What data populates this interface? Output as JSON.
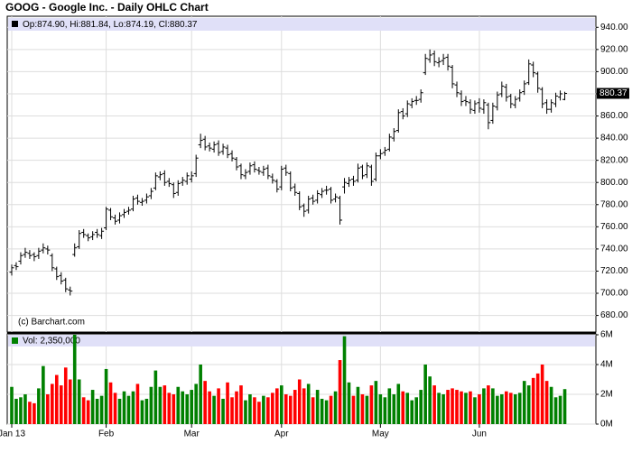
{
  "chart_data": {
    "type": "ohlc",
    "title": "GOOG - Google Inc. - Daily OHLC Chart",
    "info": "Op:874.90, Hi:881.84, Lo:874.19, Cl:880.37",
    "copyright": "(c) Barchart.com",
    "color": "#000000",
    "up_color": "#008000",
    "down_color": "#ff0000",
    "strip_color": "#e0e0f8",
    "grid": true,
    "categories": [
      "Jan 13",
      null,
      null,
      null,
      null,
      null,
      null,
      null,
      null,
      null,
      null,
      null,
      null,
      null,
      null,
      null,
      null,
      null,
      null,
      null,
      null,
      "Feb",
      null,
      null,
      null,
      null,
      null,
      null,
      null,
      null,
      null,
      null,
      null,
      null,
      null,
      null,
      null,
      null,
      null,
      null,
      "Mar",
      null,
      null,
      null,
      null,
      null,
      null,
      null,
      null,
      null,
      null,
      null,
      null,
      null,
      null,
      null,
      null,
      null,
      null,
      null,
      "Apr",
      null,
      null,
      null,
      null,
      null,
      null,
      null,
      null,
      null,
      null,
      null,
      null,
      null,
      null,
      null,
      null,
      null,
      null,
      null,
      null,
      null,
      "May",
      null,
      null,
      null,
      null,
      null,
      null,
      null,
      null,
      null,
      null,
      null,
      null,
      null,
      null,
      null,
      null,
      null,
      null,
      null,
      null,
      null,
      "Jun",
      null,
      null,
      null,
      null,
      null,
      null,
      null,
      null,
      null,
      null,
      null,
      null,
      null,
      null,
      null,
      null,
      null,
      null,
      null
    ],
    "open": [
      719,
      725,
      729,
      735,
      736,
      735,
      734,
      739,
      740,
      734,
      722,
      716,
      712,
      703,
      735,
      742,
      755,
      752,
      751,
      755,
      752,
      759,
      775,
      768,
      766,
      771,
      774,
      776,
      786,
      782,
      784,
      788,
      795,
      805,
      808,
      801,
      798,
      791,
      800,
      801,
      803,
      808,
      834,
      839,
      833,
      830,
      835,
      828,
      831,
      826,
      821,
      815,
      806,
      810,
      816,
      811,
      809,
      813,
      805,
      801,
      796,
      813,
      808,
      796,
      790,
      779,
      775,
      786,
      784,
      789,
      793,
      794,
      785,
      786,
      796,
      799,
      803,
      802,
      814,
      807,
      814,
      803,
      824,
      827,
      830,
      840,
      847,
      864,
      862,
      870,
      874,
      875,
      899,
      911,
      916,
      908,
      910,
      913,
      904,
      888,
      880,
      874,
      872,
      865,
      872,
      866,
      870,
      856,
      868,
      880,
      886,
      878,
      870,
      876,
      882,
      890,
      906,
      898,
      884,
      872,
      866,
      871,
      877,
      874.9
    ],
    "high": [
      726,
      728,
      737,
      741,
      739,
      737,
      741,
      745,
      743,
      736,
      724,
      719,
      714,
      706,
      745,
      757,
      758,
      754,
      756,
      758,
      759,
      778,
      777,
      771,
      773,
      776,
      778,
      788,
      789,
      786,
      790,
      795,
      809,
      810,
      811,
      804,
      800,
      802,
      805,
      809,
      810,
      825,
      844,
      842,
      836,
      837,
      838,
      835,
      834,
      829,
      823,
      817,
      812,
      818,
      819,
      814,
      815,
      816,
      808,
      803,
      815,
      816,
      810,
      799,
      792,
      781,
      788,
      789,
      793,
      795,
      797,
      796,
      790,
      788,
      804,
      805,
      806,
      817,
      816,
      818,
      816,
      827,
      830,
      832,
      844,
      849,
      866,
      867,
      874,
      876,
      878,
      884,
      916,
      920,
      919,
      913,
      916,
      916,
      906,
      891,
      883,
      878,
      875,
      874,
      876,
      875,
      872,
      872,
      882,
      891,
      889,
      880,
      878,
      884,
      892,
      911,
      909,
      900,
      886,
      875,
      875,
      881,
      883,
      881.84
    ],
    "low": [
      716,
      721,
      726,
      732,
      731,
      729,
      731,
      736,
      735,
      720,
      712,
      708,
      701,
      698,
      733,
      740,
      750,
      747,
      748,
      750,
      749,
      757,
      766,
      762,
      763,
      768,
      771,
      774,
      780,
      779,
      781,
      785,
      793,
      802,
      797,
      796,
      786,
      788,
      797,
      798,
      800,
      805,
      831,
      829,
      828,
      827,
      824,
      825,
      822,
      819,
      811,
      803,
      803,
      807,
      809,
      807,
      806,
      803,
      799,
      791,
      793,
      806,
      792,
      788,
      775,
      769,
      772,
      780,
      781,
      786,
      789,
      781,
      782,
      762,
      790,
      796,
      797,
      800,
      803,
      804,
      797,
      801,
      821,
      824,
      828,
      837,
      845,
      857,
      859,
      867,
      870,
      872,
      897,
      908,
      905,
      904,
      906,
      901,
      885,
      877,
      869,
      869,
      862,
      862,
      863,
      862,
      848,
      853,
      865,
      877,
      873,
      867,
      867,
      873,
      879,
      888,
      895,
      881,
      867,
      862,
      863,
      868,
      874,
      874.19
    ],
    "close": [
      723,
      724,
      734,
      737,
      734,
      733,
      738,
      741,
      739,
      723,
      715,
      711,
      704,
      702,
      741,
      754,
      753,
      750,
      753,
      753,
      756,
      776,
      769,
      765,
      770,
      773,
      775,
      785,
      783,
      783,
      787,
      792,
      806,
      807,
      800,
      799,
      790,
      799,
      802,
      806,
      806,
      822,
      838,
      832,
      831,
      834,
      827,
      832,
      825,
      822,
      814,
      807,
      809,
      815,
      812,
      810,
      812,
      806,
      802,
      794,
      812,
      809,
      795,
      791,
      778,
      774,
      785,
      783,
      790,
      792,
      793,
      784,
      787,
      766,
      800,
      802,
      801,
      813,
      806,
      815,
      801,
      824,
      826,
      829,
      841,
      846,
      863,
      860,
      871,
      873,
      874,
      881,
      912,
      915,
      909,
      909,
      912,
      905,
      889,
      881,
      873,
      873,
      866,
      871,
      867,
      872,
      854,
      869,
      879,
      887,
      877,
      871,
      875,
      881,
      889,
      907,
      899,
      885,
      871,
      866,
      872,
      878,
      880,
      880.37
    ],
    "ylim": [
      665,
      950
    ],
    "yticks": [
      {
        "value": 940,
        "label": "940.00"
      },
      {
        "value": 920,
        "label": "920.00"
      },
      {
        "value": 900,
        "label": "900.00"
      },
      {
        "value": 880,
        "label": "880.00"
      },
      {
        "value": 860,
        "label": "860.00"
      },
      {
        "value": 840,
        "label": "840.00"
      },
      {
        "value": 820,
        "label": "820.00"
      },
      {
        "value": 800,
        "label": "800.00"
      },
      {
        "value": 780,
        "label": "780.00"
      },
      {
        "value": 760,
        "label": "760.00"
      },
      {
        "value": 740,
        "label": "740.00"
      },
      {
        "value": 720,
        "label": "720.00"
      },
      {
        "value": 700,
        "label": "700.00"
      },
      {
        "value": 680,
        "label": "680.00"
      }
    ],
    "volume": {
      "label": "Vol: 2,350,000",
      "values": [
        2500000,
        1700000,
        1800000,
        2000000,
        1500000,
        1400000,
        2400000,
        3900000,
        2000000,
        2700000,
        3300000,
        2600000,
        3800000,
        3000000,
        6000000,
        3000000,
        1800000,
        1600000,
        2300000,
        1700000,
        1900000,
        3700000,
        2800000,
        2100000,
        1700000,
        2200000,
        1900000,
        2200000,
        2700000,
        1600000,
        1700000,
        2500000,
        3600000,
        2500000,
        2600000,
        2100000,
        2000000,
        2500000,
        2200000,
        2000000,
        2300000,
        2700000,
        4000000,
        2900000,
        2200000,
        1900000,
        2400000,
        1700000,
        2800000,
        1800000,
        2200000,
        2600000,
        1600000,
        2000000,
        1800000,
        1500000,
        1900000,
        1800000,
        2100000,
        2400000,
        2600000,
        2000000,
        1900000,
        2300000,
        3000000,
        2400000,
        2700000,
        1800000,
        2300000,
        1700000,
        1600000,
        1900000,
        2200000,
        4300000,
        5900000,
        2800000,
        1900000,
        2500000,
        2000000,
        1900000,
        2600000,
        2900000,
        2000000,
        1800000,
        2400000,
        2000000,
        2700000,
        2200000,
        2100000,
        1600000,
        1800000,
        2300000,
        4000000,
        3200000,
        2600000,
        2100000,
        2000000,
        2300000,
        2400000,
        2300000,
        2200000,
        2100000,
        2200000,
        1800000,
        2000000,
        2400000,
        2600000,
        2400000,
        1900000,
        2000000,
        2200000,
        2100000,
        2000000,
        2100000,
        2900000,
        2600000,
        3100000,
        3400000,
        4000000,
        2900000,
        2500000,
        1800000,
        1900000,
        2350000
      ],
      "ylim": [
        0,
        6000000
      ],
      "yticks": [
        {
          "value": 6000000,
          "label": "6M"
        },
        {
          "value": 4000000,
          "label": "4M"
        },
        {
          "value": 2000000,
          "label": "2M"
        },
        {
          "value": 0,
          "label": "0M"
        }
      ]
    }
  }
}
